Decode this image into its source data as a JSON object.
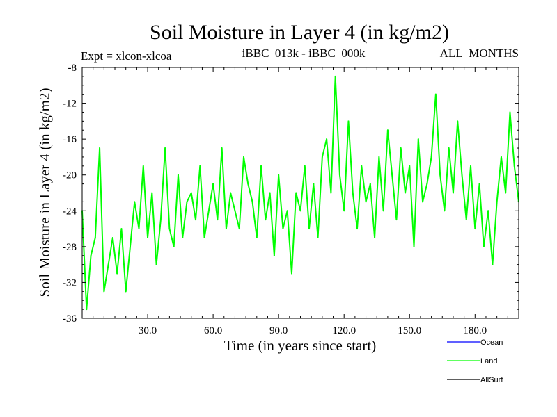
{
  "chart_data": {
    "type": "line",
    "title": "Soil Moisture in Layer 4 (in kg/m2)",
    "subtitle_left": "Expt = xlcon-xlcoa",
    "subtitle_center": "iBBC_013k - iBBC_000k",
    "subtitle_right": "ALL_MONTHS",
    "xlabel": "Time (in years since start)",
    "ylabel": "Soil Moisture in Layer 4 (in kg/m2)",
    "xlim": [
      0,
      200
    ],
    "ylim": [
      -36,
      -8
    ],
    "xticks": [
      30,
      60,
      90,
      120,
      150,
      180
    ],
    "xtick_labels": [
      "30.0",
      "60.0",
      "90.0",
      "120.0",
      "150.0",
      "180.0"
    ],
    "yticks": [
      -36,
      -32,
      -28,
      -24,
      -20,
      -16,
      -12,
      -8
    ],
    "ytick_labels": [
      "-36",
      "-32",
      "-28",
      "-24",
      "-20",
      "-16",
      "-12",
      "-8"
    ],
    "series": [
      {
        "name": "Ocean",
        "color": "#0000ff",
        "x": [],
        "values": []
      },
      {
        "name": "Land",
        "color": "#00ff00",
        "x": [
          0,
          2,
          4,
          6,
          8,
          10,
          12,
          14,
          16,
          18,
          20,
          22,
          24,
          26,
          28,
          30,
          32,
          34,
          36,
          38,
          40,
          42,
          44,
          46,
          48,
          50,
          52,
          54,
          56,
          58,
          60,
          62,
          64,
          66,
          68,
          70,
          72,
          74,
          76,
          78,
          80,
          82,
          84,
          86,
          88,
          90,
          92,
          94,
          96,
          98,
          100,
          102,
          104,
          106,
          108,
          110,
          112,
          114,
          116,
          118,
          120,
          122,
          124,
          126,
          128,
          130,
          132,
          134,
          136,
          138,
          140,
          142,
          144,
          146,
          148,
          150,
          152,
          154,
          156,
          158,
          160,
          162,
          164,
          166,
          168,
          170,
          172,
          174,
          176,
          178,
          180,
          182,
          184,
          186,
          188,
          190,
          192,
          194,
          196,
          198,
          200
        ],
        "values": [
          -24,
          -35,
          -29,
          -27,
          -17,
          -33,
          -30,
          -27,
          -31,
          -26,
          -33,
          -28,
          -23,
          -26,
          -19,
          -27,
          -22,
          -30,
          -25,
          -17,
          -26,
          -28,
          -20,
          -27,
          -23,
          -22,
          -25,
          -19,
          -27,
          -24,
          -21,
          -25,
          -17,
          -26,
          -22,
          -24,
          -26,
          -18,
          -21,
          -23,
          -27,
          -19,
          -25,
          -22,
          -29,
          -20,
          -26,
          -24,
          -31,
          -22,
          -24,
          -19,
          -26,
          -21,
          -27,
          -18,
          -16,
          -22,
          -9,
          -20,
          -24,
          -14,
          -22,
          -26,
          -19,
          -23,
          -21,
          -27,
          -18,
          -24,
          -15,
          -20,
          -25,
          -17,
          -22,
          -19,
          -28,
          -16,
          -23,
          -21,
          -18,
          -11,
          -20,
          -24,
          -17,
          -22,
          -14,
          -20,
          -25,
          -19,
          -26,
          -21,
          -28,
          -24,
          -30,
          -23,
          -18,
          -22,
          -13,
          -19,
          -23
        ]
      },
      {
        "name": "AllSurf",
        "color": "#000000",
        "x": [],
        "values": []
      }
    ],
    "legend_position": "bottom-right"
  }
}
